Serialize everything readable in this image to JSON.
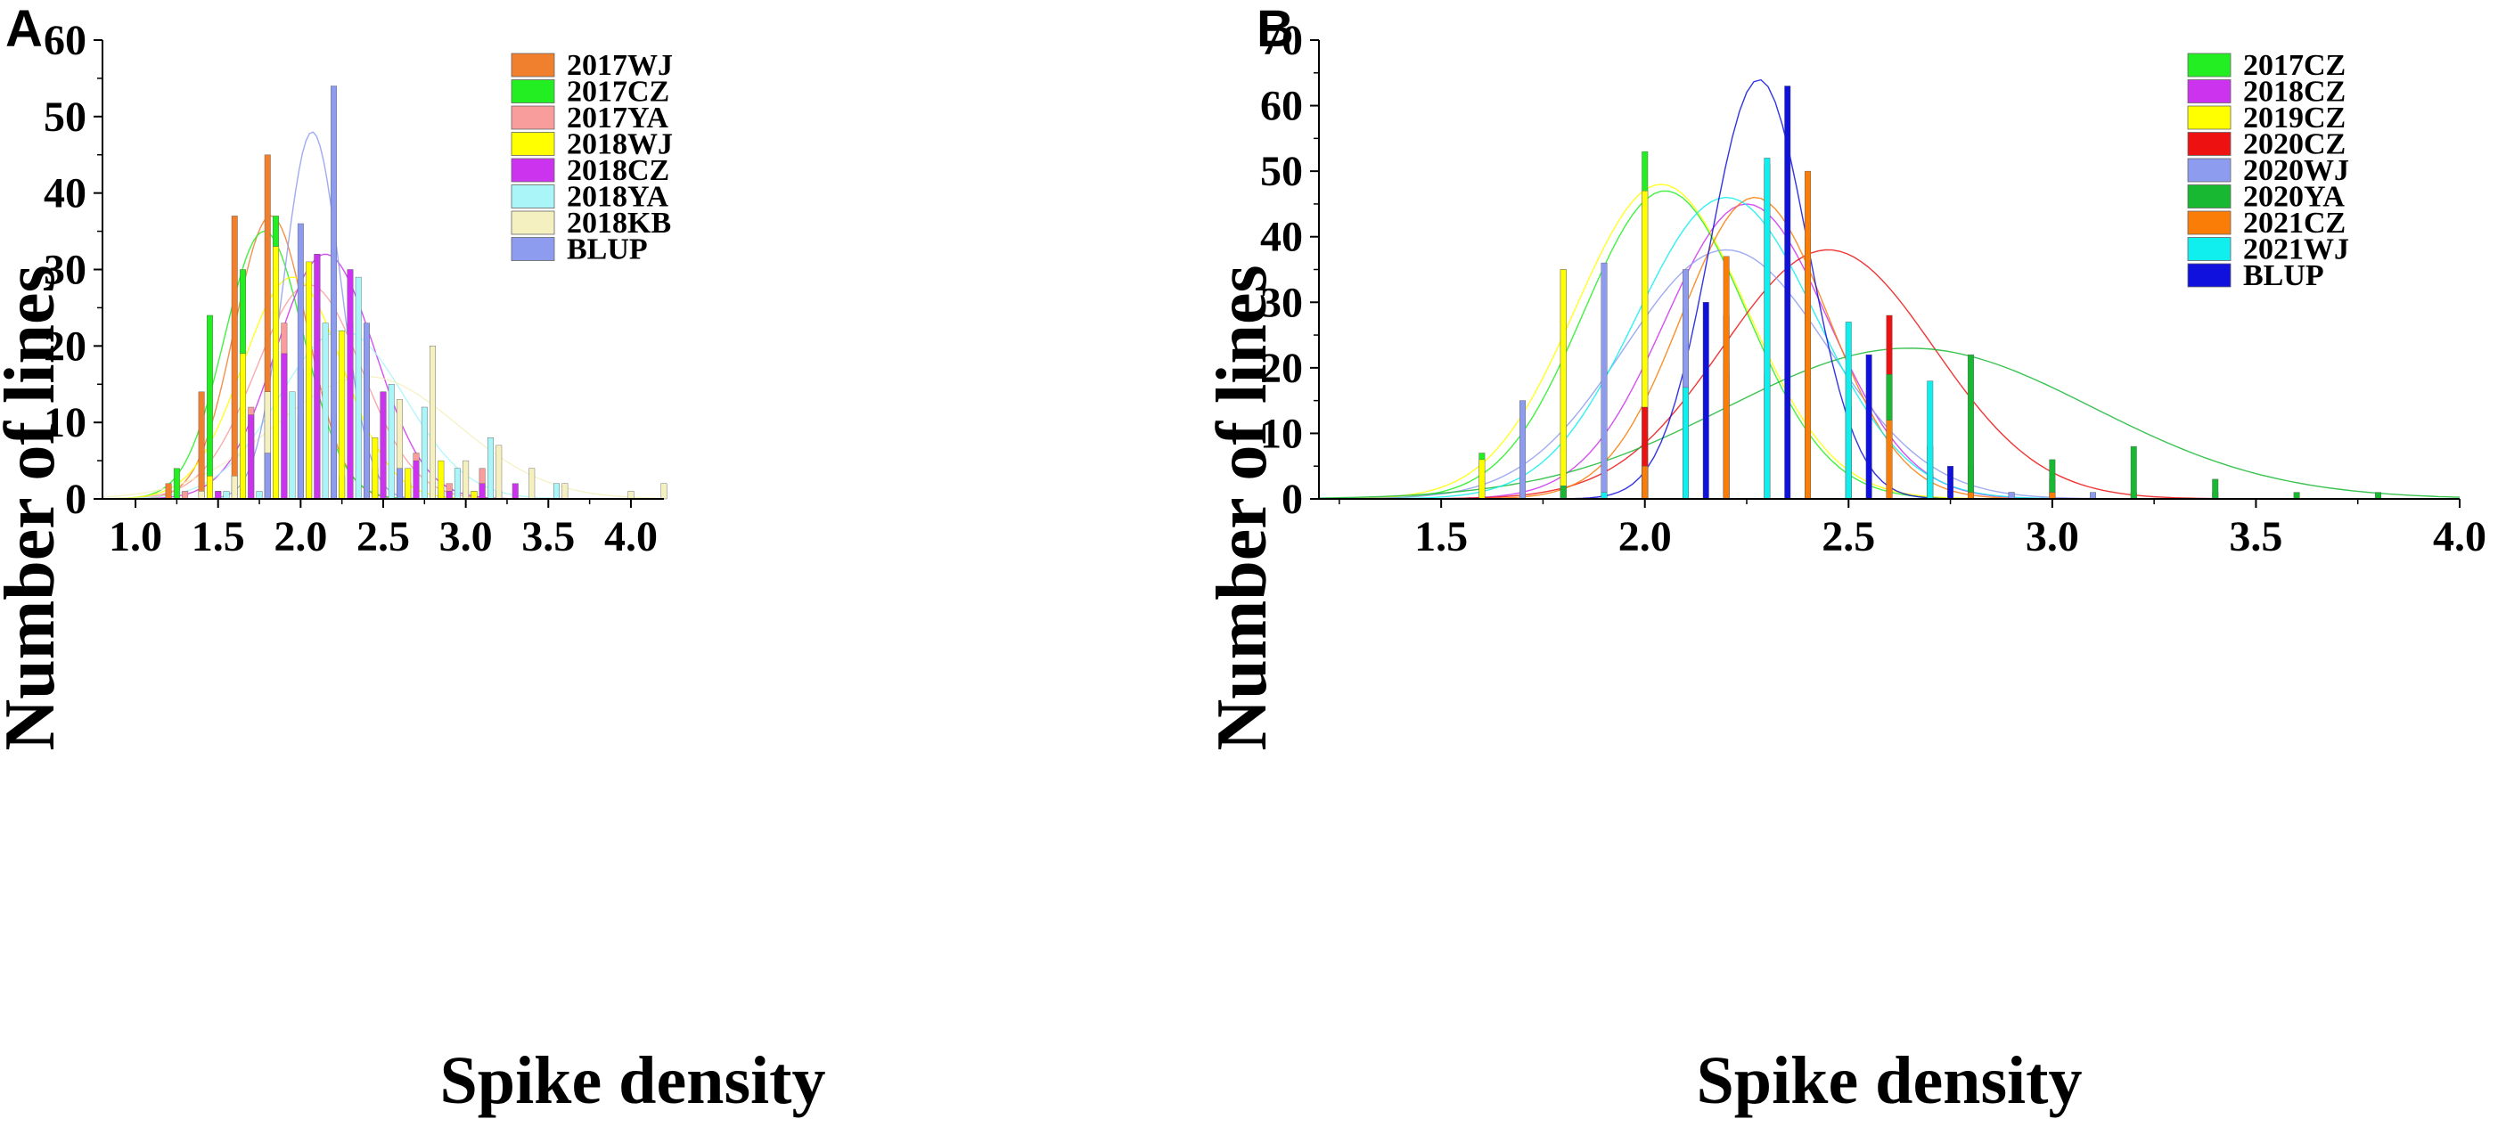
{
  "figure": {
    "panels": [
      "A",
      "B"
    ]
  },
  "chart_data": [
    {
      "panel": "A",
      "type": "bar",
      "title": "",
      "xlabel": "Spike density",
      "ylabel": "Number of lines",
      "xlim": [
        0.8,
        4.2
      ],
      "ylim": [
        0,
        60
      ],
      "xticks": [
        "1.0",
        "1.5",
        "2.0",
        "2.5",
        "3.0",
        "3.5",
        "4.0"
      ],
      "yticks": [
        "0",
        "10",
        "20",
        "30",
        "40",
        "50",
        "60"
      ],
      "grid": false,
      "legend": "top-right",
      "series": [
        {
          "name": "2017WJ",
          "color": "#F07F2E",
          "x": [
            1.2,
            1.4,
            1.6,
            1.8,
            2.0,
            2.2,
            2.4,
            2.6,
            2.8,
            3.0,
            3.2
          ],
          "values": [
            2,
            14,
            37,
            45,
            17,
            7,
            4,
            2,
            2,
            1,
            1
          ],
          "fit": {
            "mean": 1.82,
            "sd": 0.22,
            "peak": 37
          }
        },
        {
          "name": "2017CZ",
          "color": "#22EE22",
          "x": [
            1.25,
            1.45,
            1.65,
            1.85,
            2.05,
            2.25,
            2.45,
            2.65,
            2.85,
            3.05
          ],
          "values": [
            4,
            24,
            30,
            37,
            19,
            3,
            4,
            2,
            1,
            1
          ],
          "fit": {
            "mean": 1.78,
            "sd": 0.24,
            "peak": 35
          }
        },
        {
          "name": "2017YA",
          "color": "#F99C9C",
          "x": [
            1.3,
            1.5,
            1.7,
            1.9,
            2.1,
            2.3,
            2.5,
            2.7,
            2.9,
            3.1
          ],
          "values": [
            1,
            1,
            12,
            23,
            32,
            23,
            14,
            6,
            2,
            4
          ],
          "fit": {
            "mean": 2.05,
            "sd": 0.32,
            "peak": 28
          }
        },
        {
          "name": "2018WJ",
          "color": "#FFFF00",
          "x": [
            1.45,
            1.65,
            1.85,
            2.05,
            2.25,
            2.45,
            2.65,
            2.85,
            3.05
          ],
          "values": [
            3,
            19,
            33,
            31,
            22,
            8,
            4,
            5,
            1
          ],
          "fit": {
            "mean": 1.95,
            "sd": 0.3,
            "peak": 29
          }
        },
        {
          "name": "2018CZ",
          "color": "#CC33EE",
          "x": [
            1.5,
            1.7,
            1.9,
            2.1,
            2.3,
            2.5,
            2.7,
            2.9,
            3.1,
            3.3
          ],
          "values": [
            1,
            11,
            19,
            32,
            30,
            14,
            5,
            1,
            2,
            2
          ],
          "fit": {
            "mean": 2.15,
            "sd": 0.3,
            "peak": 32
          }
        },
        {
          "name": "2018YA",
          "color": "#AAF5F8",
          "x": [
            1.55,
            1.75,
            1.95,
            2.15,
            2.35,
            2.55,
            2.75,
            2.95,
            3.15,
            3.55
          ],
          "values": [
            1,
            1,
            14,
            23,
            29,
            15,
            12,
            4,
            8,
            2
          ],
          "fit": {
            "mean": 2.25,
            "sd": 0.38,
            "peak": 22
          }
        },
        {
          "name": "2018KB",
          "color": "#F5F0C0",
          "x": [
            1.4,
            1.6,
            1.8,
            2.0,
            2.2,
            2.4,
            2.6,
            2.8,
            3.0,
            3.2,
            3.4,
            3.6,
            4.0,
            4.2
          ],
          "values": [
            1,
            3,
            14,
            11,
            11,
            17,
            13,
            20,
            5,
            7,
            4,
            2,
            1,
            2
          ],
          "fit": {
            "mean": 2.4,
            "sd": 0.55,
            "peak": 16
          }
        },
        {
          "name": "BLUP",
          "color": "#8E9CF0",
          "x": [
            1.8,
            2.0,
            2.2,
            2.4,
            2.6
          ],
          "values": [
            6,
            36,
            54,
            23,
            4
          ],
          "fit": {
            "mean": 2.07,
            "sd": 0.17,
            "peak": 48
          }
        }
      ]
    },
    {
      "panel": "B",
      "type": "bar",
      "title": "",
      "xlabel": "Spike density",
      "ylabel": "Number of lines",
      "xlim": [
        1.2,
        4.0
      ],
      "ylim": [
        0,
        70
      ],
      "xticks": [
        "1.5",
        "2.0",
        "2.5",
        "3.0",
        "3.5",
        "4.0"
      ],
      "yticks": [
        "0",
        "10",
        "20",
        "30",
        "40",
        "50",
        "60",
        "70"
      ],
      "grid": false,
      "legend": "top-right",
      "series": [
        {
          "name": "2017CZ",
          "color": "#22EE22",
          "x": [
            1.6,
            1.8,
            2.0,
            2.2,
            2.4
          ],
          "values": [
            7,
            35,
            53,
            19,
            4
          ],
          "fit": {
            "mean": 2.05,
            "sd": 0.2,
            "peak": 47
          }
        },
        {
          "name": "2018CZ",
          "color": "#CC33EE",
          "x": [
            1.7,
            1.9,
            2.1,
            2.3,
            2.5,
            2.7,
            2.9
          ],
          "values": [
            1,
            9,
            29,
            51,
            19,
            8,
            1
          ],
          "fit": {
            "mean": 2.25,
            "sd": 0.2,
            "peak": 45
          }
        },
        {
          "name": "2019CZ",
          "color": "#FFFF00",
          "x": [
            1.6,
            1.8,
            2.0,
            2.2,
            2.4,
            2.6
          ],
          "values": [
            6,
            35,
            47,
            21,
            10,
            2
          ],
          "fit": {
            "mean": 2.04,
            "sd": 0.21,
            "peak": 48
          }
        },
        {
          "name": "2020CZ",
          "color": "#EE1111",
          "x": [
            2.0,
            2.2,
            2.4,
            2.6,
            2.8,
            3.0,
            3.2,
            3.4
          ],
          "values": [
            14,
            28,
            40,
            28,
            5,
            3,
            1,
            1
          ],
          "fit": {
            "mean": 2.45,
            "sd": 0.26,
            "peak": 38
          }
        },
        {
          "name": "2020WJ",
          "color": "#8E9CF0",
          "x": [
            1.7,
            1.9,
            2.1,
            2.3,
            2.5,
            2.7,
            2.9,
            3.1
          ],
          "values": [
            15,
            36,
            35,
            19,
            14,
            4,
            1,
            1
          ],
          "fit": {
            "mean": 2.2,
            "sd": 0.25,
            "peak": 38
          }
        },
        {
          "name": "2020YA",
          "color": "#18B832",
          "x": [
            1.8,
            2.0,
            2.2,
            2.4,
            2.6,
            2.8,
            3.0,
            3.2,
            3.4,
            3.6,
            3.8
          ],
          "values": [
            2,
            5,
            13,
            28,
            19,
            22,
            6,
            8,
            3,
            1,
            1
          ],
          "fit": {
            "mean": 2.65,
            "sd": 0.45,
            "peak": 23
          }
        },
        {
          "name": "2021CZ",
          "color": "#F97D06",
          "x": [
            2.0,
            2.2,
            2.4,
            2.6,
            2.8,
            3.0
          ],
          "values": [
            5,
            37,
            50,
            12,
            1,
            1
          ],
          "fit": {
            "mean": 2.27,
            "sd": 0.18,
            "peak": 46
          }
        },
        {
          "name": "2021WJ",
          "color": "#11EEEE",
          "x": [
            1.9,
            2.1,
            2.3,
            2.5,
            2.7
          ],
          "values": [
            1,
            17,
            52,
            27,
            18
          ],
          "fit": {
            "mean": 2.2,
            "sd": 0.22,
            "peak": 46
          }
        },
        {
          "name": "BLUP",
          "color": "#1111DD",
          "x": [
            2.15,
            2.35,
            2.55,
            2.75
          ],
          "values": [
            30,
            63,
            22,
            5
          ],
          "fit": {
            "mean": 2.28,
            "sd": 0.12,
            "peak": 64
          }
        }
      ]
    }
  ]
}
